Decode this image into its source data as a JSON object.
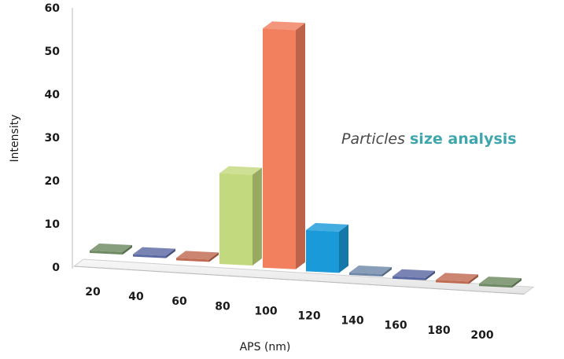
{
  "chart_data": {
    "type": "bar",
    "style": "3d",
    "title": "",
    "xlabel": "APS (nm)",
    "ylabel": "Intensity",
    "ylim": [
      0,
      60
    ],
    "yticks": [
      "0",
      "10",
      "20",
      "30",
      "40",
      "50",
      "60"
    ],
    "categories": [
      "20",
      "40",
      "60",
      "80",
      "100",
      "120",
      "140",
      "160",
      "180",
      "200"
    ],
    "values": [
      0,
      0,
      0,
      22,
      58,
      10,
      0,
      0,
      0,
      0
    ],
    "colors": [
      "#6e8a62",
      "#5b69a3",
      "#c06a52",
      "#c3d97e",
      "#f27f5e",
      "#1a9ad9",
      "#6e87a8",
      "#5b69a3",
      "#c06a52",
      "#6e8a62"
    ],
    "grid": false,
    "legend": "none"
  },
  "annotation": {
    "prefix": "Particles ",
    "highlight": "size analysis",
    "highlight_color": "#3fa6ad"
  }
}
